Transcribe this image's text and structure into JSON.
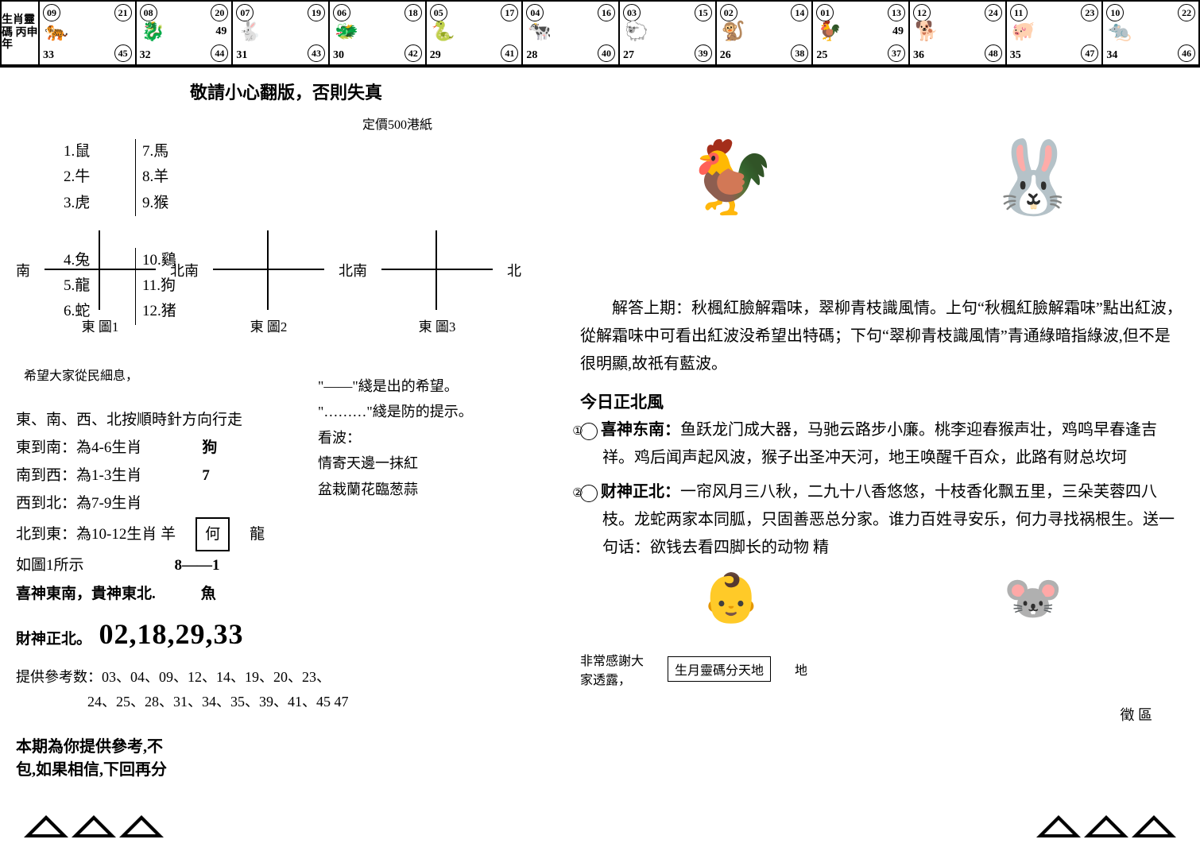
{
  "strip_label": "生肖靈碼 丙申年",
  "zodiac_cells": [
    {
      "tl": "09",
      "tr": "21",
      "mid": "",
      "bl": "33",
      "br": "45",
      "icon": "🐅"
    },
    {
      "tl": "08",
      "tr": "20",
      "mid": "49",
      "bl": "32",
      "br": "44",
      "icon": "🐉"
    },
    {
      "tl": "07",
      "tr": "19",
      "mid": "",
      "bl": "31",
      "br": "43",
      "icon": "🐇"
    },
    {
      "tl": "06",
      "tr": "18",
      "mid": "",
      "bl": "30",
      "br": "42",
      "icon": "🐲"
    },
    {
      "tl": "05",
      "tr": "17",
      "mid": "",
      "bl": "29",
      "br": "41",
      "icon": "🐍"
    },
    {
      "tl": "04",
      "tr": "16",
      "mid": "",
      "bl": "28",
      "br": "40",
      "icon": "🐄"
    },
    {
      "tl": "03",
      "tr": "15",
      "mid": "",
      "bl": "27",
      "br": "39",
      "icon": "🐑"
    },
    {
      "tl": "02",
      "tr": "14",
      "mid": "",
      "bl": "26",
      "br": "38",
      "icon": "🐒"
    },
    {
      "tl": "01",
      "tr": "13",
      "mid": "49",
      "bl": "25",
      "br": "37",
      "icon": "🐓"
    },
    {
      "tl": "12",
      "tr": "24",
      "mid": "",
      "bl": "36",
      "br": "48",
      "icon": "🐕"
    },
    {
      "tl": "11",
      "tr": "23",
      "mid": "",
      "bl": "35",
      "br": "47",
      "icon": "🐖"
    },
    {
      "tl": "10",
      "tr": "22",
      "mid": "",
      "bl": "34",
      "br": "46",
      "icon": "🐀"
    }
  ],
  "headline": "敬請小心翻版，否則失真",
  "price": "定價500港紙",
  "zodiac_list_top": [
    {
      "a": "1.鼠",
      "b": "7.馬"
    },
    {
      "a": "2.牛",
      "b": "8.羊"
    },
    {
      "a": "3.虎",
      "b": "9.猴"
    }
  ],
  "zodiac_list_bottom": [
    {
      "a": "4.兔",
      "b": "10.鷄"
    },
    {
      "a": "5.龍",
      "b": "11.狗"
    },
    {
      "a": "6.蛇",
      "b": "12.猪"
    }
  ],
  "compass": {
    "south": "南",
    "north": "北",
    "east": "東",
    "caps": [
      "圖1",
      "圖2",
      "圖3"
    ]
  },
  "hope_note": "希望大家從民細息，",
  "guide_lines": [
    "東、南、西、北按順時針方向行走",
    "東到南：為4-6生肖",
    "南到西：為1-3生肖",
    "西到北：為7-9生肖",
    "北到東：為10-12生肖 羊",
    "如圖1所示",
    "喜神東南，貴神東北.",
    "財神正北。"
  ],
  "guide_extras": {
    "dog": "狗",
    "seven": "7",
    "he": "何",
    "long": "龍",
    "eight_one": "8——1",
    "yu": "魚"
  },
  "side_guide": [
    "\"——\"綫是出的希望。",
    "\"………\"綫是防的提示。",
    "看波：",
    "情寄天邊一抹紅",
    "盆栽蘭花臨葱蒜"
  ],
  "big_numbers": "02,18,29,33",
  "ref_label": "提供參考数：",
  "ref_numbers": "03、04、09、12、14、19、20、23、\n24、25、28、31、34、35、39、41、45  47",
  "footer_note": "本期為你提供參考,不\n包,如果相信,下回再分",
  "answer": "解答上期：秋楓紅臉解霜味，翠柳青枝識風情。上句“秋楓紅臉解霜味”點出紅波，從解霜味中可看出紅波没希望出特碼；下句“翠柳青枝識風情”青通綠暗指綠波,但不是很明顯,故祇有藍波。",
  "today_wind": "今日正北風",
  "verse1_title": "喜神东南：",
  "verse1": "鱼跃龙门成大器，马驰云路步小廉。桃李迎春猴声壮，鸡鸣早春逢吉祥。鸡后闻声起风波，猴子出圣冲天河，地王唤醒千百众，此路有财总坎坷",
  "verse2_title": "财神正北：",
  "verse2": "一帘风月三八秋，二九十八香悠悠，十枝香化飘五里，三朵芙蓉四八枝。龙蛇两家本同胍，只固善恶总分家。谁力百姓寻安乐，何力寻找祸根生。送一句话：欲钱去看四脚长的动物 精",
  "bottom_thanks": "非常感謝大\n家透露，",
  "bottom_box": "生月靈碼分天地",
  "bottom_di": "地",
  "bottom_badge": "徵 區"
}
